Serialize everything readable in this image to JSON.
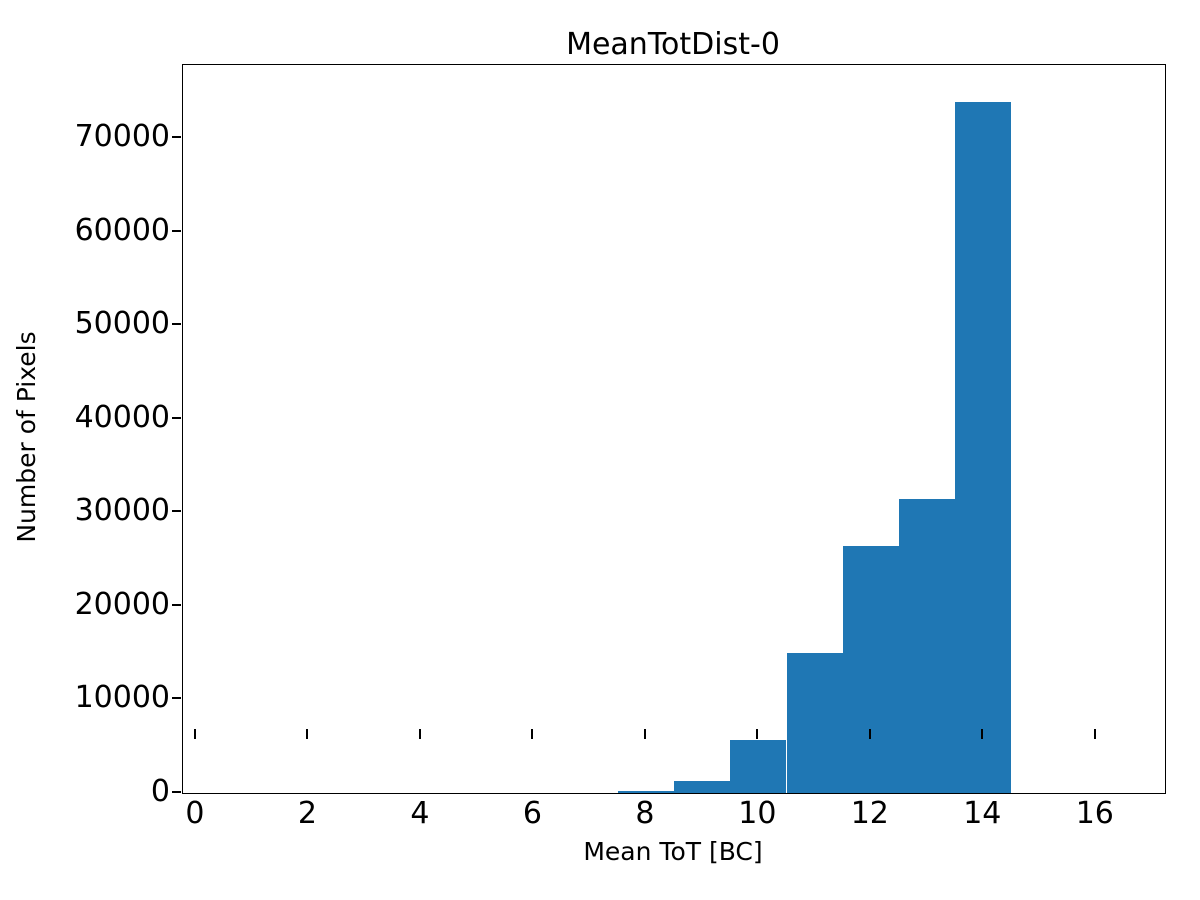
{
  "chart_data": {
    "type": "bar",
    "subtype": "histogram",
    "title": "MeanTotDist-0",
    "xlabel": "Mean ToT [BC]",
    "ylabel": "Number of Pixels",
    "bin_edges": [
      7.5,
      8.5,
      9.5,
      10.5,
      11.5,
      12.5,
      13.5,
      14.5
    ],
    "values": [
      200,
      1280,
      5700,
      15000,
      26400,
      31400,
      73800
    ],
    "bar_color": "#1f77b4",
    "axis_color": "#000000",
    "background_color": "#ffffff",
    "xlim": [
      -0.23,
      17.23
    ],
    "ylim": [
      0,
      77800
    ],
    "xticks": [
      0,
      2,
      4,
      6,
      8,
      10,
      12,
      14,
      16
    ],
    "yticks": [
      0,
      10000,
      20000,
      30000,
      40000,
      50000,
      60000,
      70000
    ],
    "grid": false
  }
}
